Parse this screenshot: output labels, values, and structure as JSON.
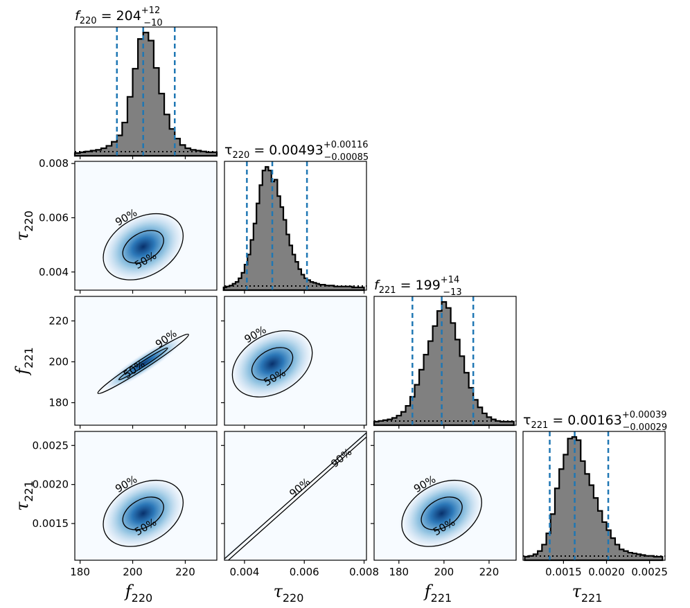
{
  "chart_data": {
    "type": "corner",
    "parameters": [
      {
        "key": "f220",
        "label_base": "f",
        "label_sub": "220",
        "range": [
          178,
          232
        ],
        "ticks": [
          180,
          200,
          220
        ],
        "tick_labels": [
          "180",
          "200",
          "220"
        ],
        "median": 204,
        "lower": 194,
        "upper": 216,
        "title_prefix": "f",
        "title_sub": "220",
        "title_value": "= 204",
        "title_plus": "+12",
        "title_minus": "−10"
      },
      {
        "key": "tau220",
        "label_base": "τ",
        "label_sub": "220",
        "range": [
          0.00333,
          0.00808
        ],
        "ticks": [
          0.004,
          0.006,
          0.008
        ],
        "tick_labels": [
          "0.004",
          "0.006",
          "0.008"
        ],
        "median": 0.00493,
        "lower": 0.00408,
        "upper": 0.00609,
        "title_prefix": "τ",
        "title_sub": "220",
        "title_value": "= 0.00493",
        "title_plus": "+0.00116",
        "title_minus": "−0.00085"
      },
      {
        "key": "f221",
        "label_base": "f",
        "label_sub": "221",
        "range": [
          169,
          232
        ],
        "ticks": [
          180,
          200,
          220
        ],
        "tick_labels": [
          "180",
          "200",
          "220"
        ],
        "median": 199,
        "lower": 186,
        "upper": 213,
        "title_prefix": "f",
        "title_sub": "221",
        "title_value": "= 199",
        "title_plus": "+14",
        "title_minus": "−13"
      },
      {
        "key": "tau221",
        "label_base": "τ",
        "label_sub": "221",
        "range": [
          0.00103,
          0.00268
        ],
        "ticks": [
          0.0015,
          0.002,
          0.0025
        ],
        "tick_labels": [
          "0.0015",
          "0.0020",
          "0.0025"
        ],
        "median": 0.00163,
        "lower": 0.00134,
        "upper": 0.00202,
        "title_prefix": "τ",
        "title_sub": "221",
        "title_value": "= 0.00163",
        "title_plus": "+0.00039",
        "title_minus": "−0.00029"
      }
    ],
    "histograms": [
      {
        "param": "f220",
        "bins": [
          178,
          180,
          182,
          184,
          186,
          188,
          190,
          192,
          194,
          196,
          198,
          200,
          202,
          204,
          206,
          208,
          210,
          212,
          214,
          216,
          218,
          220,
          222,
          224,
          226,
          228,
          230,
          232
        ],
        "counts": [
          0,
          1,
          2,
          3,
          4,
          6,
          9,
          14,
          22,
          38,
          70,
          105,
          142,
          150,
          140,
          106,
          74,
          48,
          30,
          18,
          10,
          6,
          4,
          3,
          2,
          1,
          1
        ]
      },
      {
        "param": "tau220",
        "bins": [
          0.0033,
          0.0034,
          0.0035,
          0.0036,
          0.0037,
          0.0038,
          0.0039,
          0.004,
          0.0041,
          0.0042,
          0.0043,
          0.0044,
          0.0045,
          0.0046,
          0.0047,
          0.0048,
          0.0049,
          0.005,
          0.0051,
          0.0052,
          0.0053,
          0.0054,
          0.0055,
          0.0056,
          0.0057,
          0.0058,
          0.0059,
          0.006,
          0.0061,
          0.0062,
          0.0063,
          0.0064,
          0.0065,
          0.0066,
          0.0067,
          0.0068,
          0.0069,
          0.007,
          0.0071,
          0.0072,
          0.0073,
          0.0074,
          0.0075,
          0.0076,
          0.0077,
          0.0078,
          0.0079,
          0.008
        ],
        "counts": [
          0,
          1,
          2,
          4,
          6,
          10,
          16,
          25,
          36,
          52,
          70,
          92,
          112,
          128,
          132,
          128,
          116,
          118,
          100,
          88,
          74,
          58,
          46,
          36,
          28,
          20,
          14,
          10,
          8,
          6,
          5,
          4,
          3,
          3,
          2,
          2,
          2,
          1,
          1,
          1,
          1,
          1,
          1,
          0,
          0,
          0,
          0
        ]
      },
      {
        "param": "f221",
        "bins": [
          169,
          171,
          173,
          175,
          177,
          179,
          181,
          183,
          185,
          187,
          189,
          191,
          193,
          195,
          197,
          199,
          201,
          203,
          205,
          207,
          209,
          211,
          213,
          215,
          217,
          219,
          221,
          223,
          225,
          227,
          229,
          231
        ],
        "counts": [
          1,
          2,
          3,
          4,
          6,
          9,
          14,
          22,
          34,
          50,
          70,
          90,
          108,
          128,
          148,
          160,
          152,
          132,
          110,
          88,
          66,
          46,
          30,
          20,
          12,
          7,
          4,
          2,
          1,
          1,
          1
        ]
      },
      {
        "param": "tau221",
        "bins": [
          0.00105,
          0.0011,
          0.00115,
          0.0012,
          0.00125,
          0.0013,
          0.00135,
          0.0014,
          0.00145,
          0.0015,
          0.00155,
          0.0016,
          0.00165,
          0.0017,
          0.00175,
          0.0018,
          0.00185,
          0.0019,
          0.00195,
          0.002,
          0.00205,
          0.0021,
          0.00215,
          0.0022,
          0.00225,
          0.0023,
          0.00235,
          0.0024,
          0.00245,
          0.0025,
          0.00255,
          0.0026,
          0.00265
        ],
        "counts": [
          1,
          2,
          4,
          8,
          16,
          30,
          54,
          86,
          110,
          128,
          148,
          150,
          146,
          120,
          104,
          90,
          74,
          58,
          44,
          34,
          24,
          16,
          10,
          8,
          6,
          5,
          4,
          3,
          2,
          2,
          1,
          1
        ]
      }
    ],
    "contour_levels": [
      "50%",
      "90%"
    ],
    "prior_line": "dotted",
    "cmap": "Blues",
    "colors": {
      "hist_fill": "#808080",
      "hist_edge": "#000000",
      "quantile_line": "#1f77b4",
      "prior": "#000000",
      "contour": "#000000"
    }
  }
}
